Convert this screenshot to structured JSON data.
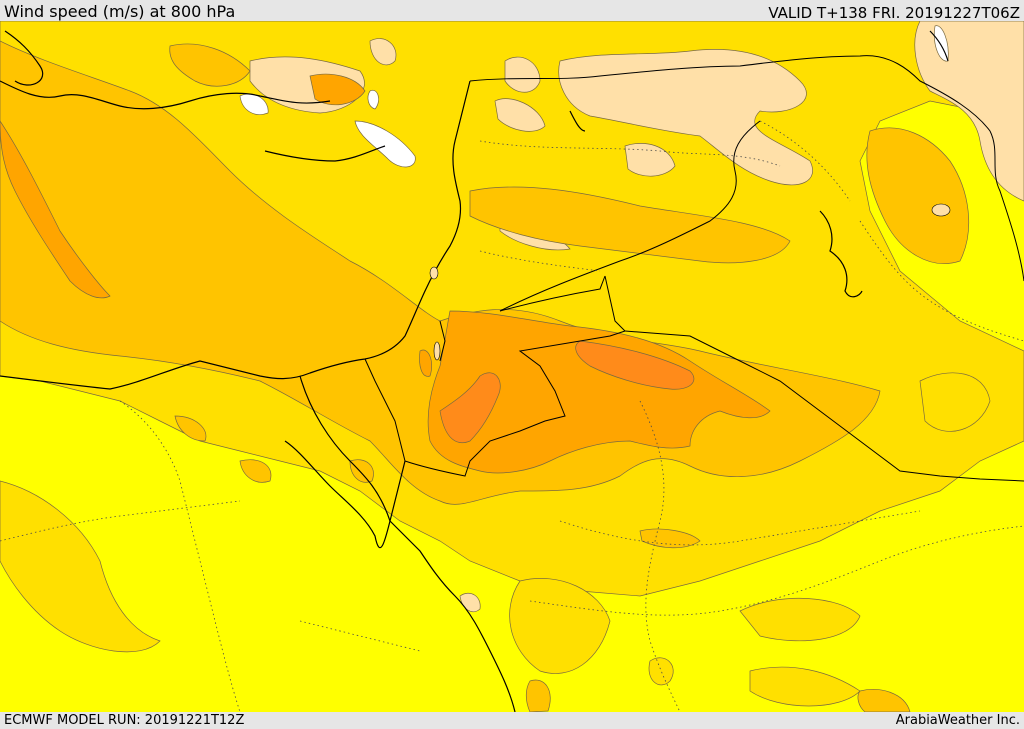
{
  "header": {
    "title": "Wind speed (m/s) at 800 hPa",
    "valid": "VALID T+138 FRI. 20191227T06Z"
  },
  "footer": {
    "model_run": "ECMWF MODEL RUN: 20191221T12Z",
    "credit": "ArabiaWeather Inc."
  },
  "palette": {
    "background_band": "#ffff00",
    "band_light": "#ffe000",
    "band_mid": "#ffc400",
    "band_strong": "#ffa500",
    "band_max": "#ff8b1a",
    "weak_wind": "#ffe0a8",
    "calm": "#ffffff",
    "contour": "#6b5a3a",
    "coastline": "#000000",
    "border": "#000000"
  }
}
